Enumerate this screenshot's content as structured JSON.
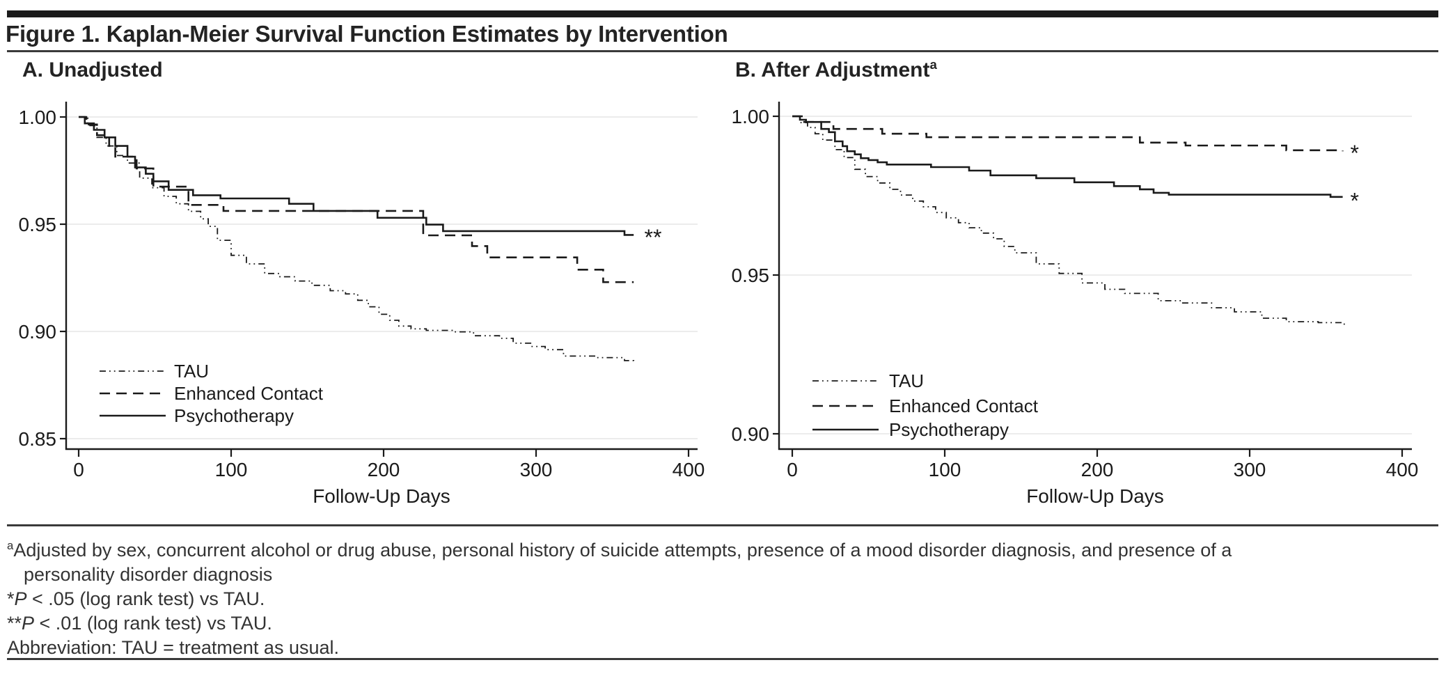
{
  "title": "Figure 1. Kaplan-Meier Survival Function Estimates by Intervention",
  "panels": [
    {
      "label": "A. Unadjusted",
      "sup": ""
    },
    {
      "label": "B. After Adjustment",
      "sup": "a"
    }
  ],
  "footnotes": {
    "adjustment": {
      "sup": "a",
      "line1": "Adjusted by sex, concurrent alcohol or drug abuse, personal history of suicide attempts, presence of a mood disorder diagnosis, and presence of a",
      "line2": "personality disorder diagnosis"
    },
    "star1": {
      "prefix": "*",
      "p": "P",
      "rest": " < .05 (log rank test) vs TAU."
    },
    "star2": {
      "prefix": "**",
      "p": "P",
      "rest": " < .01 (log rank test) vs TAU."
    },
    "abbreviation": "Abbreviation: TAU = treatment as usual."
  },
  "colors": {
    "line": "#1a1a1a",
    "grid": "#ececec",
    "text": "#1a1a1a",
    "rule": "#3a3a3a",
    "bar": "#1b1b1b"
  },
  "chart_data": [
    {
      "type": "line",
      "subtype": "kaplan-meier-step",
      "panel": "A",
      "title": "A. Unadjusted",
      "xlabel": "Follow-Up Days",
      "ylabel": "",
      "xlim": [
        0,
        400
      ],
      "ylim": [
        0.85,
        1.0
      ],
      "xticks": [
        0,
        100,
        200,
        300,
        400
      ],
      "yticks": [
        1.0,
        0.95,
        0.9,
        0.85
      ],
      "grid": "horizontal-light",
      "legend_position": "lower-left-inside",
      "series": [
        {
          "name": "TAU",
          "style": "dash-dot-dot",
          "points": [
            [
              0,
              1.0
            ],
            [
              6,
              0.996
            ],
            [
              12,
              0.9905
            ],
            [
              18,
              0.9865
            ],
            [
              25,
              0.982
            ],
            [
              32,
              0.9785
            ],
            [
              40,
              0.9715
            ],
            [
              48,
              0.967
            ],
            [
              56,
              0.963
            ],
            [
              64,
              0.9595
            ],
            [
              72,
              0.956
            ],
            [
              80,
              0.9525
            ],
            [
              85,
              0.949
            ],
            [
              91,
              0.9425
            ],
            [
              100,
              0.9355
            ],
            [
              110,
              0.9315
            ],
            [
              122,
              0.927
            ],
            [
              132,
              0.9255
            ],
            [
              142,
              0.9235
            ],
            [
              153,
              0.9215
            ],
            [
              165,
              0.919
            ],
            [
              175,
              0.9175
            ],
            [
              183,
              0.9145
            ],
            [
              190,
              0.9115
            ],
            [
              197,
              0.908
            ],
            [
              204,
              0.9052
            ],
            [
              210,
              0.9025
            ],
            [
              218,
              0.9012
            ],
            [
              228,
              0.9005
            ],
            [
              245,
              0.8998
            ],
            [
              259,
              0.898
            ],
            [
              276,
              0.8968
            ],
            [
              285,
              0.8945
            ],
            [
              297,
              0.893
            ],
            [
              306,
              0.8915
            ],
            [
              318,
              0.8885
            ],
            [
              340,
              0.8878
            ],
            [
              358,
              0.8864
            ],
            [
              364,
              0.886
            ]
          ]
        },
        {
          "name": "Enhanced Contact",
          "style": "dashed",
          "points": [
            [
              0,
              1.0
            ],
            [
              5,
              0.9965
            ],
            [
              12,
              0.9915
            ],
            [
              20,
              0.9865
            ],
            [
              24,
              0.9815
            ],
            [
              38,
              0.976
            ],
            [
              49,
              0.9675
            ],
            [
              72,
              0.959
            ],
            [
              95,
              0.9562
            ],
            [
              226,
              0.9448
            ],
            [
              258,
              0.9398
            ],
            [
              268,
              0.9345
            ],
            [
              327,
              0.9288
            ],
            [
              344,
              0.923
            ],
            [
              364,
              0.923
            ]
          ]
        },
        {
          "name": "Psychotherapy",
          "style": "solid",
          "points": [
            [
              0,
              1.0
            ],
            [
              4,
              0.997
            ],
            [
              10,
              0.994
            ],
            [
              17,
              0.9905
            ],
            [
              24,
              0.9865
            ],
            [
              32,
              0.9815
            ],
            [
              37,
              0.9765
            ],
            [
              44,
              0.9735
            ],
            [
              49,
              0.97
            ],
            [
              59,
              0.966
            ],
            [
              75,
              0.9635
            ],
            [
              93,
              0.962
            ],
            [
              138,
              0.9595
            ],
            [
              154,
              0.9562
            ],
            [
              196,
              0.953
            ],
            [
              228,
              0.9498
            ],
            [
              239,
              0.9468
            ],
            [
              358,
              0.945
            ],
            [
              364,
              0.945
            ]
          ]
        }
      ],
      "annotations": [
        {
          "text": "**",
          "day": 371,
          "value": 0.9452
        }
      ]
    },
    {
      "type": "line",
      "subtype": "kaplan-meier-step",
      "panel": "B",
      "title": "B. After Adjustment",
      "title_sup": "a",
      "xlabel": "Follow-Up Days",
      "ylabel": "",
      "xlim": [
        0,
        400
      ],
      "ylim": [
        0.9,
        1.0
      ],
      "xticks": [
        0,
        100,
        200,
        300,
        400
      ],
      "yticks": [
        1.0,
        0.95,
        0.9
      ],
      "grid": "horizontal-light",
      "legend_position": "lower-left-inside",
      "series": [
        {
          "name": "TAU",
          "style": "dash-dot-dot",
          "points": [
            [
              0,
              1.0
            ],
            [
              5,
              0.998
            ],
            [
              10,
              0.9965
            ],
            [
              15,
              0.9945
            ],
            [
              20,
              0.9925
            ],
            [
              28,
              0.9895
            ],
            [
              34,
              0.987
            ],
            [
              41,
              0.9833
            ],
            [
              48,
              0.981
            ],
            [
              56,
              0.979
            ],
            [
              64,
              0.977
            ],
            [
              71,
              0.9752
            ],
            [
              79,
              0.9733
            ],
            [
              86,
              0.9715
            ],
            [
              94,
              0.9697
            ],
            [
              101,
              0.968
            ],
            [
              109,
              0.9665
            ],
            [
              116,
              0.9649
            ],
            [
              124,
              0.9632
            ],
            [
              132,
              0.9614
            ],
            [
              139,
              0.959
            ],
            [
              146,
              0.957
            ],
            [
              160,
              0.9535
            ],
            [
              175,
              0.9505
            ],
            [
              190,
              0.9475
            ],
            [
              205,
              0.9455
            ],
            [
              218,
              0.9442
            ],
            [
              240,
              0.9419
            ],
            [
              255,
              0.9412
            ],
            [
              275,
              0.9397
            ],
            [
              290,
              0.9384
            ],
            [
              308,
              0.9364
            ],
            [
              324,
              0.9353
            ],
            [
              345,
              0.935
            ],
            [
              362,
              0.934
            ]
          ]
        },
        {
          "name": "Enhanced Contact",
          "style": "dashed",
          "points": [
            [
              0,
              1.0
            ],
            [
              7,
              0.9982
            ],
            [
              27,
              0.996
            ],
            [
              59,
              0.9945
            ],
            [
              88,
              0.9934
            ],
            [
              228,
              0.9917
            ],
            [
              258,
              0.9908
            ],
            [
              324,
              0.9893
            ],
            [
              361,
              0.989
            ]
          ]
        },
        {
          "name": "Psychotherapy",
          "style": "solid",
          "points": [
            [
              0,
              1.0
            ],
            [
              5,
              0.9989
            ],
            [
              9,
              0.9982
            ],
            [
              19,
              0.996
            ],
            [
              24,
              0.995
            ],
            [
              28,
              0.9921
            ],
            [
              33,
              0.9906
            ],
            [
              36,
              0.989
            ],
            [
              41,
              0.988
            ],
            [
              45,
              0.9868
            ],
            [
              50,
              0.9862
            ],
            [
              56,
              0.9855
            ],
            [
              62,
              0.9848
            ],
            [
              91,
              0.984
            ],
            [
              116,
              0.9829
            ],
            [
              130,
              0.9814
            ],
            [
              160,
              0.9805
            ],
            [
              185,
              0.9792
            ],
            [
              211,
              0.978
            ],
            [
              228,
              0.977
            ],
            [
              237,
              0.9759
            ],
            [
              247,
              0.9753
            ],
            [
              353,
              0.9746
            ],
            [
              361,
              0.9746
            ]
          ]
        }
      ],
      "annotations": [
        {
          "text": "*",
          "day": 366,
          "value": 0.9892
        },
        {
          "text": "*",
          "day": 366,
          "value": 0.9742
        }
      ]
    }
  ]
}
